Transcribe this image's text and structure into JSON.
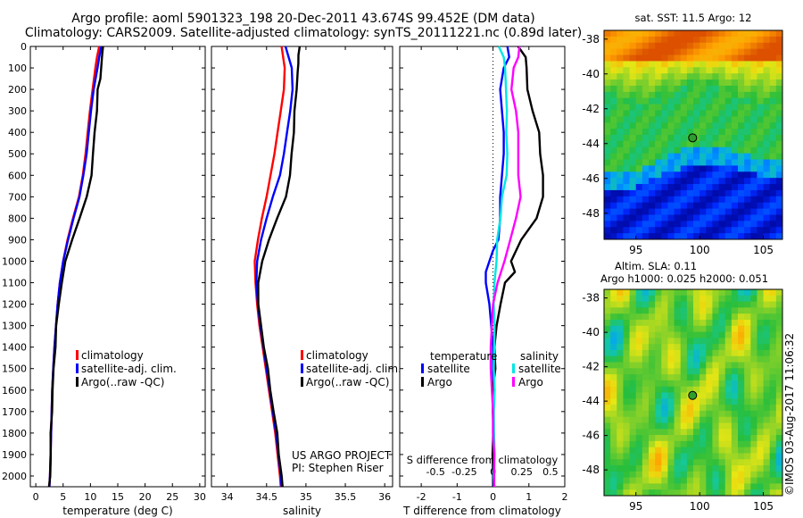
{
  "header": {
    "line1": "Argo profile: aoml 5901323_198 20-Dec-2011 43.674S 99.452E (DM data)",
    "line2": "Climatology: CARS2009. Satellite-adjusted climatology: synTS_20111221.nc (0.89d later)"
  },
  "depth_ticks": [
    0,
    100,
    200,
    300,
    400,
    500,
    600,
    700,
    800,
    900,
    1000,
    1100,
    1200,
    1300,
    1400,
    1500,
    1600,
    1700,
    1800,
    1900,
    2000
  ],
  "colors": {
    "climatology": "#ff0000",
    "satellite": "#0000ff",
    "argo": "#000000",
    "sal_satellite": "#00e5e5",
    "sal_argo": "#ff00ff"
  },
  "chart_data": [
    {
      "type": "line",
      "xlabel": "temperature (deg C)",
      "xlim": [
        -1,
        31
      ],
      "ylim": [
        0,
        2050
      ],
      "xticks": [
        0,
        5,
        10,
        15,
        20,
        25,
        30
      ],
      "legend": [
        "climatology",
        "satellite-adj. clim.",
        "Argo(..raw -QC)"
      ],
      "legend_placement": "lower-right",
      "series": [
        {
          "name": "climatology",
          "depth": [
            0,
            50,
            100,
            200,
            300,
            400,
            500,
            600,
            700,
            800,
            900,
            1000,
            1100,
            1200,
            1300,
            1400,
            1500,
            1600,
            1700,
            1800,
            1900,
            2000,
            2050
          ],
          "values": [
            11.6,
            11.2,
            10.9,
            10.4,
            9.9,
            9.5,
            9.1,
            8.6,
            7.9,
            6.8,
            5.8,
            5.0,
            4.4,
            4.0,
            3.7,
            3.4,
            3.2,
            3.0,
            2.9,
            2.8,
            2.7,
            2.6,
            2.5
          ]
        },
        {
          "name": "satellite-adj. clim.",
          "depth": [
            0,
            50,
            100,
            200,
            300,
            400,
            500,
            600,
            700,
            800,
            900,
            1000,
            1100,
            1200,
            1300,
            1400,
            1500,
            1600,
            1700,
            1800,
            1900,
            2000,
            2050
          ],
          "values": [
            12.0,
            11.6,
            11.3,
            10.6,
            10.1,
            9.7,
            9.3,
            8.7,
            8.0,
            6.9,
            5.9,
            5.0,
            4.4,
            4.0,
            3.7,
            3.4,
            3.2,
            3.0,
            2.9,
            2.8,
            2.7,
            2.6,
            2.5
          ]
        },
        {
          "name": "Argo(..raw -QC)",
          "depth": [
            0,
            30,
            50,
            100,
            150,
            200,
            300,
            400,
            500,
            600,
            700,
            800,
            900,
            1000,
            1100,
            1200,
            1300,
            1400,
            1500,
            1600,
            1700,
            1800,
            1900,
            2000,
            2050
          ],
          "values": [
            12.3,
            12.1,
            12.2,
            11.9,
            11.8,
            11.4,
            11.1,
            10.8,
            10.5,
            10.1,
            9.4,
            8.0,
            6.6,
            5.5,
            4.7,
            4.2,
            3.8,
            3.5,
            3.3,
            3.1,
            2.9,
            2.8,
            2.7,
            2.6,
            2.5
          ]
        }
      ]
    },
    {
      "type": "line",
      "xlabel": "salinity",
      "xlim": [
        33.8,
        36.1
      ],
      "ylim": [
        0,
        2050
      ],
      "xticks": [
        34,
        34.5,
        35,
        35.5,
        36
      ],
      "legend": [
        "climatology",
        "satellite-adj. clim.",
        "Argo(..raw -QC)"
      ],
      "legend_placement": "lower-right",
      "annotation": [
        "US ARGO PROJECT",
        "PI: Stephen Riser"
      ],
      "series": [
        {
          "name": "climatology",
          "depth": [
            0,
            100,
            200,
            300,
            400,
            500,
            600,
            700,
            800,
            900,
            1000,
            1100,
            1200,
            1300,
            1400,
            1500,
            1600,
            1700,
            1800,
            1900,
            2000,
            2050
          ],
          "values": [
            34.69,
            34.73,
            34.72,
            34.68,
            34.64,
            34.6,
            34.55,
            34.5,
            34.44,
            34.39,
            34.35,
            34.36,
            34.38,
            34.41,
            34.45,
            34.49,
            34.53,
            34.57,
            34.61,
            34.64,
            34.67,
            34.68
          ]
        },
        {
          "name": "satellite-adj. clim.",
          "depth": [
            0,
            100,
            200,
            300,
            400,
            500,
            600,
            700,
            800,
            900,
            1000,
            1100,
            1200,
            1300,
            1400,
            1500,
            1600,
            1700,
            1800,
            1900,
            2000,
            2050
          ],
          "values": [
            34.74,
            34.82,
            34.83,
            34.8,
            34.76,
            34.72,
            34.67,
            34.58,
            34.5,
            34.43,
            34.38,
            34.37,
            34.39,
            34.42,
            34.46,
            34.5,
            34.54,
            34.58,
            34.62,
            34.65,
            34.68,
            34.69
          ]
        },
        {
          "name": "Argo(..raw -QC)",
          "depth": [
            0,
            40,
            80,
            120,
            200,
            300,
            400,
            500,
            600,
            700,
            800,
            900,
            1000,
            1100,
            1200,
            1300,
            1400,
            1500,
            1600,
            1700,
            1800,
            1900,
            2000,
            2050
          ],
          "values": [
            34.92,
            34.9,
            34.91,
            34.89,
            34.88,
            34.86,
            34.84,
            34.82,
            34.8,
            34.74,
            34.64,
            34.53,
            34.44,
            34.4,
            34.39,
            34.43,
            34.47,
            34.51,
            34.55,
            34.59,
            34.63,
            34.66,
            34.69,
            34.7
          ]
        }
      ]
    },
    {
      "type": "line",
      "xlabel": "T difference from climatology",
      "xlabel_top": "S difference from climatology",
      "xlim": [
        -2.6,
        2.0
      ],
      "ylim": [
        0,
        2050
      ],
      "xticks": [
        -2,
        -1,
        0,
        1,
        2
      ],
      "xticks_top": [
        "-0.5",
        "-0.25",
        "0",
        "0.25",
        "0.5"
      ],
      "legend_titles": [
        "temperature",
        "salinity"
      ],
      "legend": [
        "satellite",
        "Argo",
        "satellite",
        "Argo"
      ],
      "legend_placement": "lower-center",
      "series": [
        {
          "name": "satellite",
          "quantity": "temperature",
          "depth": [
            0,
            50,
            100,
            200,
            300,
            400,
            500,
            600,
            700,
            800,
            900,
            950,
            1000,
            1050,
            1100,
            1200,
            1300,
            1400,
            1500,
            1600,
            1700,
            1800,
            1900,
            2000,
            2050
          ],
          "values": [
            0.4,
            0.45,
            0.3,
            0.2,
            0.25,
            0.3,
            0.3,
            0.25,
            0.2,
            0.2,
            0.15,
            0.0,
            -0.1,
            -0.2,
            -0.2,
            -0.1,
            -0.05,
            0.0,
            0.0,
            0.0,
            0.0,
            0.0,
            0.0,
            0.0,
            0.0
          ]
        },
        {
          "name": "Argo",
          "quantity": "temperature",
          "depth": [
            0,
            50,
            100,
            200,
            300,
            400,
            500,
            600,
            700,
            800,
            900,
            1000,
            1050,
            1100,
            1200,
            1300,
            1400,
            1500,
            1600,
            1700,
            1800,
            1900,
            2000,
            2050
          ],
          "values": [
            0.7,
            0.9,
            0.95,
            0.95,
            1.1,
            1.3,
            1.3,
            1.4,
            1.4,
            1.2,
            0.8,
            0.5,
            0.6,
            0.35,
            0.2,
            0.1,
            0.05,
            0.05,
            0.0,
            0.0,
            0.0,
            0.0,
            0.0,
            0.0
          ]
        },
        {
          "name": "satellite",
          "quantity": "salinity",
          "depth": [
            0,
            50,
            100,
            200,
            300,
            400,
            500,
            600,
            700,
            800,
            900,
            1000,
            1100,
            1200,
            1300,
            1400,
            1500,
            1600,
            1700,
            1800,
            1900,
            2000,
            2050
          ],
          "values": [
            0.05,
            0.09,
            0.11,
            0.11,
            0.12,
            0.12,
            0.12,
            0.12,
            0.08,
            0.06,
            0.04,
            0.03,
            0.01,
            0.01,
            0.01,
            0.01,
            0.01,
            0.01,
            0.01,
            0.01,
            0.01,
            0.01,
            0.01
          ]
        },
        {
          "name": "Argo",
          "quantity": "salinity",
          "depth": [
            0,
            50,
            100,
            200,
            300,
            400,
            500,
            600,
            700,
            800,
            900,
            1000,
            1100,
            1200,
            1300,
            1400,
            1500,
            1600,
            1700,
            1800,
            1900,
            2000,
            2050
          ],
          "values": [
            0.23,
            0.22,
            0.18,
            0.16,
            0.2,
            0.22,
            0.22,
            0.22,
            0.24,
            0.2,
            0.15,
            0.1,
            0.04,
            0.0,
            -0.01,
            -0.02,
            -0.02,
            -0.01,
            0.0,
            0.0,
            0.01,
            0.01,
            0.01
          ]
        }
      ]
    },
    {
      "type": "heatmap",
      "title": "sat. SST: 11.5 Argo: 12",
      "lon_range": [
        92.5,
        106.5
      ],
      "lat_range": [
        -49.5,
        -37.5
      ],
      "xticks": [
        95,
        100,
        105
      ],
      "yticks": [
        -38,
        -40,
        -42,
        -44,
        -46,
        -48
      ],
      "marker": {
        "lon": 99.45,
        "lat": -43.67
      }
    },
    {
      "type": "heatmap",
      "title": "Altim. SLA: 0.11",
      "subtitle": "Argo h1000: 0.025 h2000: 0.051",
      "lon_range": [
        92.5,
        106.5
      ],
      "lat_range": [
        -49.5,
        -37.5
      ],
      "xticks": [
        95,
        100,
        105
      ],
      "yticks": [
        -38,
        -40,
        -42,
        -44,
        -46,
        -48
      ],
      "marker": {
        "lon": 99.45,
        "lat": -43.67
      }
    }
  ],
  "stamp": "©IMOS 03-Aug-2017 11:06:32"
}
